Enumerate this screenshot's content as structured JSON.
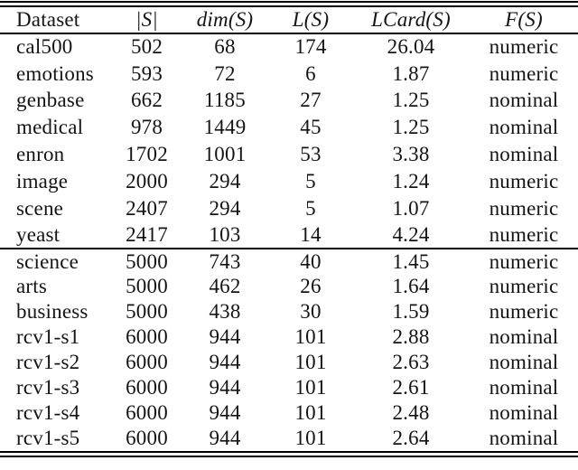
{
  "page": {
    "background": "#ffffff",
    "text_color": "#141414",
    "rule_color": "#000000"
  },
  "table": {
    "columns": [
      {
        "label": "Dataset",
        "math": false
      },
      {
        "label": "|S|",
        "math": true
      },
      {
        "label": "dim(S)",
        "math": true
      },
      {
        "label": "L(S)",
        "math": true
      },
      {
        "label": "LCard(S)",
        "math": true
      },
      {
        "label": "F(S)",
        "math": true
      }
    ],
    "sections": [
      {
        "rows": [
          [
            "cal500",
            "502",
            "68",
            "174",
            "26.04",
            "numeric"
          ],
          [
            "emotions",
            "593",
            "72",
            "6",
            "1.87",
            "numeric"
          ],
          [
            "genbase",
            "662",
            "1185",
            "27",
            "1.25",
            "nominal"
          ],
          [
            "medical",
            "978",
            "1449",
            "45",
            "1.25",
            "nominal"
          ],
          [
            "enron",
            "1702",
            "1001",
            "53",
            "3.38",
            "nominal"
          ],
          [
            "image",
            "2000",
            "294",
            "5",
            "1.24",
            "numeric"
          ],
          [
            "scene",
            "2407",
            "294",
            "5",
            "1.07",
            "numeric"
          ],
          [
            "yeast",
            "2417",
            "103",
            "14",
            "4.24",
            "numeric"
          ]
        ]
      },
      {
        "rows": [
          [
            "science",
            "5000",
            "743",
            "40",
            "1.45",
            "numeric"
          ],
          [
            "arts",
            "5000",
            "462",
            "26",
            "1.64",
            "numeric"
          ],
          [
            "business",
            "5000",
            "438",
            "30",
            "1.59",
            "numeric"
          ],
          [
            "rcv1-s1",
            "6000",
            "944",
            "101",
            "2.88",
            "nominal"
          ],
          [
            "rcv1-s2",
            "6000",
            "944",
            "101",
            "2.63",
            "nominal"
          ],
          [
            "rcv1-s3",
            "6000",
            "944",
            "101",
            "2.61",
            "nominal"
          ],
          [
            "rcv1-s4",
            "6000",
            "944",
            "101",
            "2.48",
            "nominal"
          ],
          [
            "rcv1-s5",
            "6000",
            "944",
            "101",
            "2.64",
            "nominal"
          ]
        ]
      }
    ]
  }
}
